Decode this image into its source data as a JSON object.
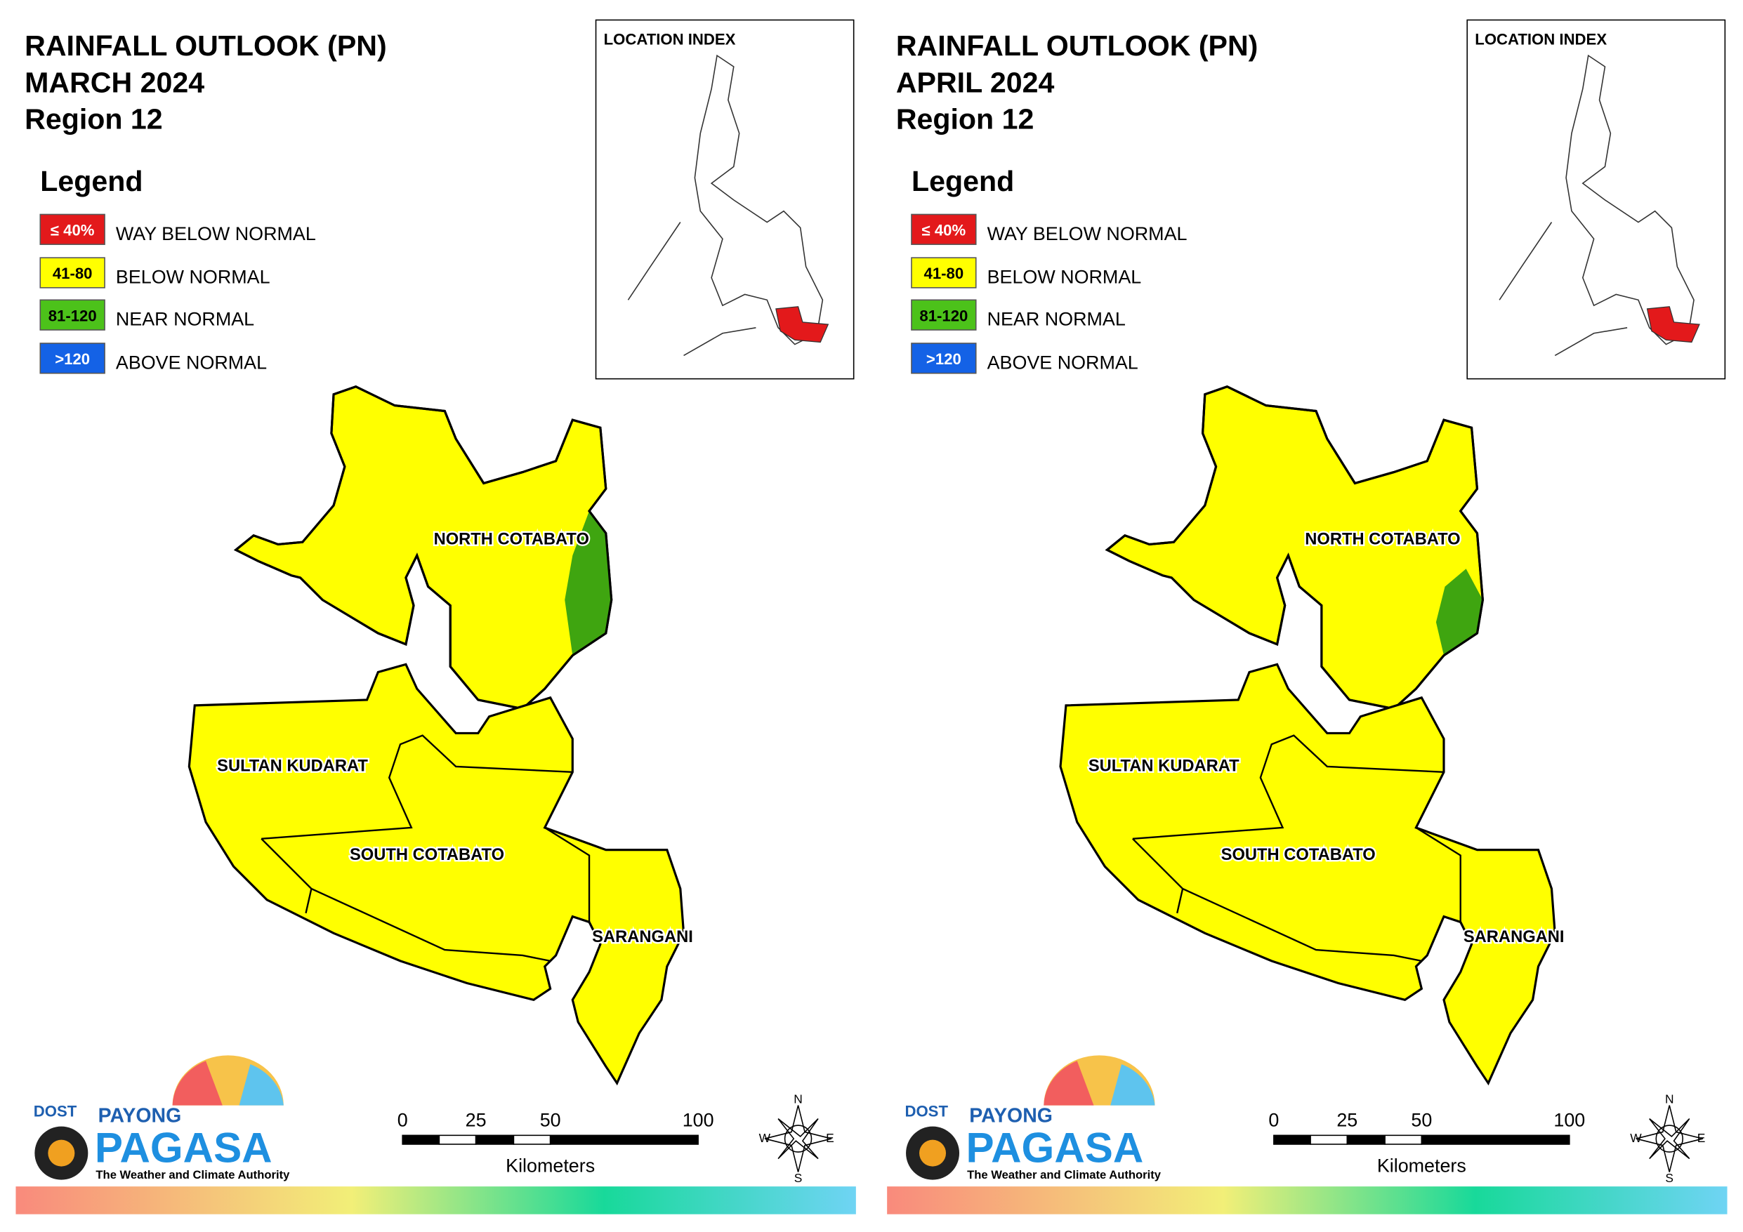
{
  "panels": [
    {
      "title": [
        "RAINFALL OUTLOOK (PN)",
        "MARCH 2024",
        "Region 12"
      ],
      "location_index": "LOCATION INDEX",
      "legend": {
        "title": "Legend",
        "items": [
          {
            "range": "≤ 40%",
            "label": "WAY BELOW NORMAL",
            "color": "#e3191b",
            "text_color": "#ffffff"
          },
          {
            "range": "41-80",
            "label": "BELOW NORMAL",
            "color": "#ffff00",
            "text_color": "#000000"
          },
          {
            "range": "81-120",
            "label": "NEAR NORMAL",
            "color": "#4cc21a",
            "text_color": "#000000"
          },
          {
            "range": ">120",
            "label": "ABOVE NORMAL",
            "color": "#1462e6",
            "text_color": "#ffffff"
          }
        ]
      },
      "provinces": [
        "NORTH COTABATO",
        "SULTAN KUDARAT",
        "SOUTH COTABATO",
        "SARANGANI"
      ],
      "scale": {
        "ticks": [
          "0",
          "25",
          "50",
          "100"
        ],
        "unit": "Kilometers"
      },
      "compass": [
        "N",
        "E",
        "S",
        "W"
      ],
      "logo": {
        "agency": "DOST",
        "brand_top": "PAYONG",
        "brand": "PAGASA",
        "tagline": "The Weather and Climate Authority"
      }
    },
    {
      "title": [
        "RAINFALL OUTLOOK (PN)",
        "APRIL 2024",
        "Region 12"
      ],
      "location_index": "LOCATION INDEX",
      "legend": {
        "title": "Legend",
        "items": [
          {
            "range": "≤ 40%",
            "label": "WAY BELOW NORMAL",
            "color": "#e3191b",
            "text_color": "#ffffff"
          },
          {
            "range": "41-80",
            "label": "BELOW NORMAL",
            "color": "#ffff00",
            "text_color": "#000000"
          },
          {
            "range": "81-120",
            "label": "NEAR NORMAL",
            "color": "#4cc21a",
            "text_color": "#000000"
          },
          {
            "range": ">120",
            "label": "ABOVE NORMAL",
            "color": "#1462e6",
            "text_color": "#ffffff"
          }
        ]
      },
      "provinces": [
        "NORTH COTABATO",
        "SULTAN KUDARAT",
        "SOUTH COTABATO",
        "SARANGANI"
      ],
      "scale": {
        "ticks": [
          "0",
          "25",
          "50",
          "100"
        ],
        "unit": "Kilometers"
      },
      "compass": [
        "N",
        "E",
        "S",
        "W"
      ],
      "logo": {
        "agency": "DOST",
        "brand_top": "PAYONG",
        "brand": "PAGASA",
        "tagline": "The Weather and Climate Authority"
      }
    }
  ]
}
